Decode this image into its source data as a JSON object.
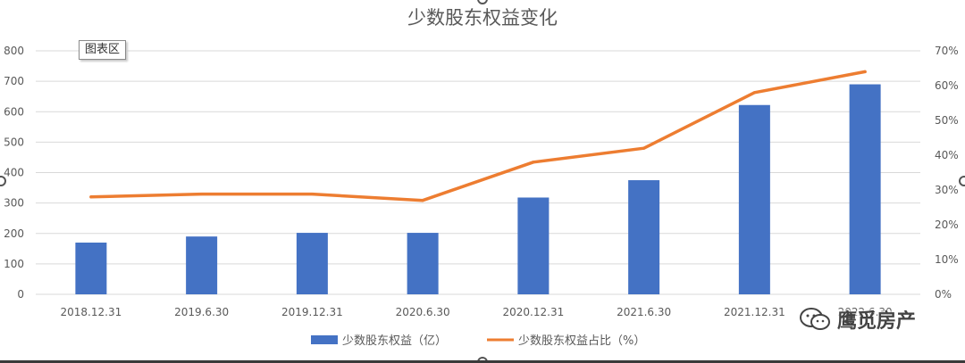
{
  "chart_data": {
    "type": "bar+line",
    "title": "少数股东权益变化",
    "categories": [
      "2018.12.31",
      "2019.6.30",
      "2019.12.31",
      "2020.6.30",
      "2020.12.31",
      "2021.6.30",
      "2021.12.31",
      "2022.6.30"
    ],
    "series": [
      {
        "name": "少数股东权益（亿）",
        "type": "bar",
        "axis": "left",
        "color": "#4472c4",
        "values": [
          170,
          190,
          202,
          202,
          318,
          375,
          622,
          690
        ]
      },
      {
        "name": "少数股东权益占比（%）",
        "type": "line",
        "axis": "right",
        "color": "#ed7d31",
        "values": [
          28,
          28.8,
          28.8,
          27,
          38,
          42,
          58,
          64
        ]
      }
    ],
    "y_left": {
      "min": 0,
      "max": 800,
      "step": 100,
      "ticks": [
        "0",
        "100",
        "200",
        "300",
        "400",
        "500",
        "600",
        "700",
        "800"
      ]
    },
    "y_right": {
      "min": 0,
      "max": 70,
      "step": 10,
      "ticks": [
        "0%",
        "10%",
        "20%",
        "30%",
        "40%",
        "50%",
        "60%",
        "70%"
      ]
    },
    "grid": true,
    "legend_position": "bottom"
  },
  "ui": {
    "chart_area_tag": "图表区",
    "watermark": "鹰觅房产"
  }
}
